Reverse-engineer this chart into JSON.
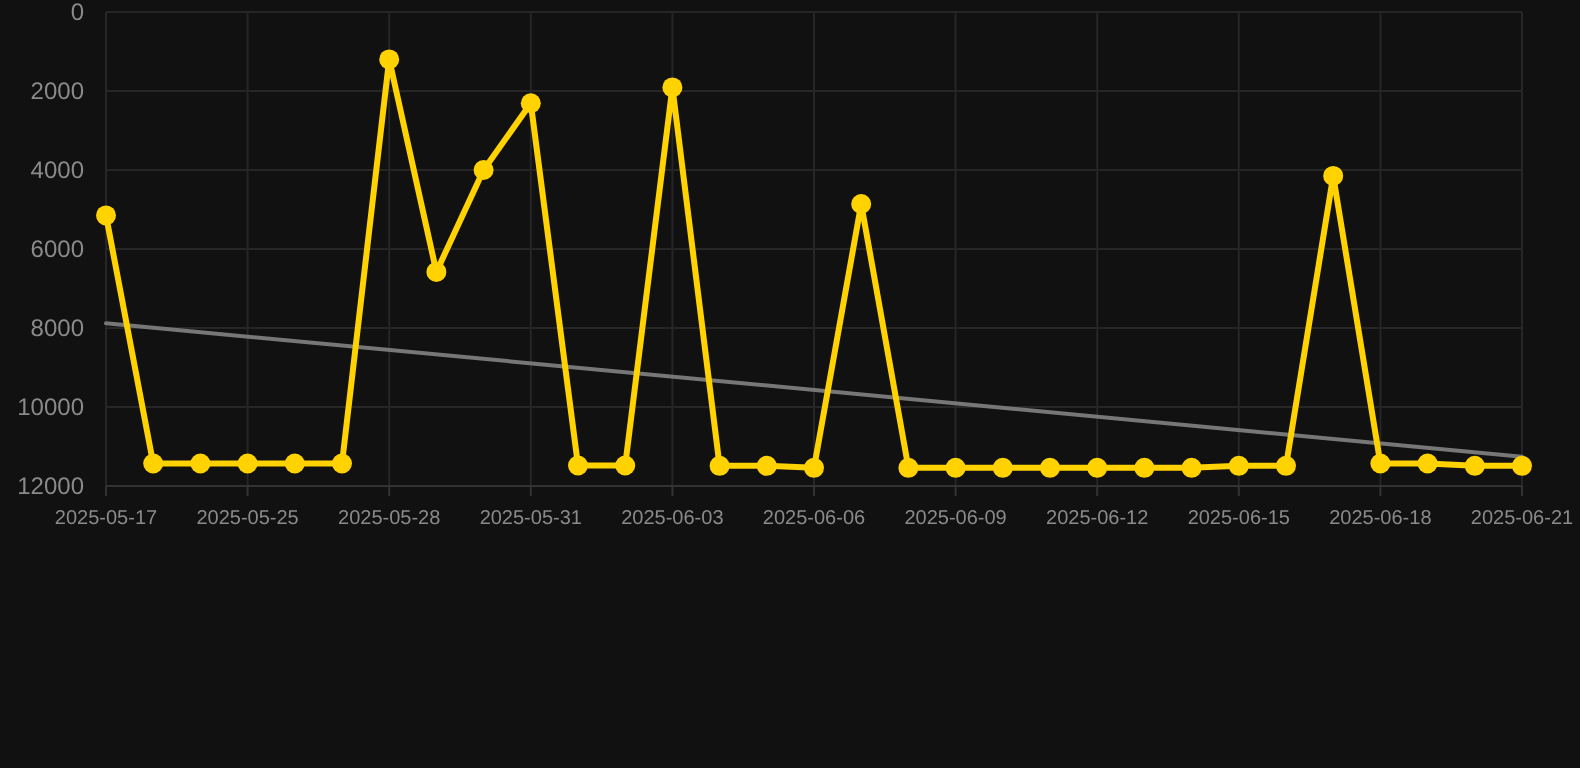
{
  "chart_data": {
    "type": "line",
    "categories": [
      "2025-05-17",
      null,
      null,
      "2025-05-25",
      null,
      null,
      "2025-05-28",
      null,
      null,
      "2025-05-31",
      null,
      null,
      "2025-06-03",
      null,
      null,
      "2025-06-06",
      null,
      null,
      "2025-06-09",
      null,
      null,
      "2025-06-12",
      null,
      null,
      "2025-06-15",
      null,
      null,
      "2025-06-18",
      null,
      null,
      "2025-06-21"
    ],
    "series": [
      {
        "color": "#ffd200",
        "marker": "circle",
        "values": [
          5150,
          11430,
          11430,
          11430,
          11430,
          11430,
          1200,
          6580,
          4000,
          2310,
          11480,
          11480,
          1910,
          11490,
          11490,
          11540,
          4860,
          11540,
          11540,
          11540,
          11540,
          11540,
          11540,
          11540,
          11490,
          11490,
          4150,
          11430,
          11430,
          11490,
          11490
        ]
      },
      {
        "type": "line",
        "color": "#777777",
        "marker": "none",
        "values": [
          7880,
          null,
          null,
          null,
          null,
          null,
          null,
          null,
          null,
          null,
          null,
          null,
          null,
          null,
          null,
          null,
          null,
          null,
          null,
          null,
          null,
          null,
          null,
          null,
          null,
          null,
          null,
          null,
          null,
          null,
          11260
        ]
      }
    ],
    "ylim": [
      12000,
      0
    ],
    "yticks": [
      0,
      2000,
      4000,
      6000,
      8000,
      10000,
      12000
    ],
    "grid": true,
    "line_style": "solid"
  }
}
